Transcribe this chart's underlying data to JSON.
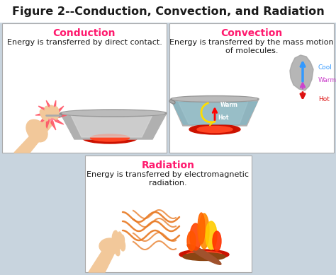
{
  "title": "Figure 2--Conduction, Convection, and Radiation",
  "title_fontsize": 11.5,
  "title_color": "#1a1a1a",
  "bg_color": "#c8d4de",
  "panel_bg": "#ffffff",
  "panel_border": "#bbbbbb",
  "conduction_title": "Conduction",
  "conduction_text": "Energy is transferred by direct contact.",
  "convection_title": "Convection",
  "convection_text": "Energy is transferred by the mass motion\nof molecules.",
  "radiation_title": "Radiation",
  "radiation_text": "Energy is transferred by electromagnetic\nradiation.",
  "section_title_color": "#ff1a6e",
  "section_text_color": "#1a1a1a",
  "section_title_fontsize": 10,
  "section_text_fontsize": 8,
  "skin_color": "#f2c89a",
  "pot_color": "#b0b0b0",
  "pot_shine": "#d8d8d8",
  "burner_outer": "#cc1100",
  "burner_inner": "#ff4422",
  "starburst_color": "#ff5566",
  "handle_color": "#888888",
  "water_color": "#7ab8c8",
  "cloud_color": "#c0c0c0",
  "fire_colors": [
    "#ff4400",
    "#ff8800",
    "#ffcc00",
    "#ff6600",
    "#ff2200"
  ],
  "wave_color": "#e87820",
  "cool_color": "#3399ff",
  "warm_color": "#cc44cc",
  "hot_color": "#dd1111"
}
